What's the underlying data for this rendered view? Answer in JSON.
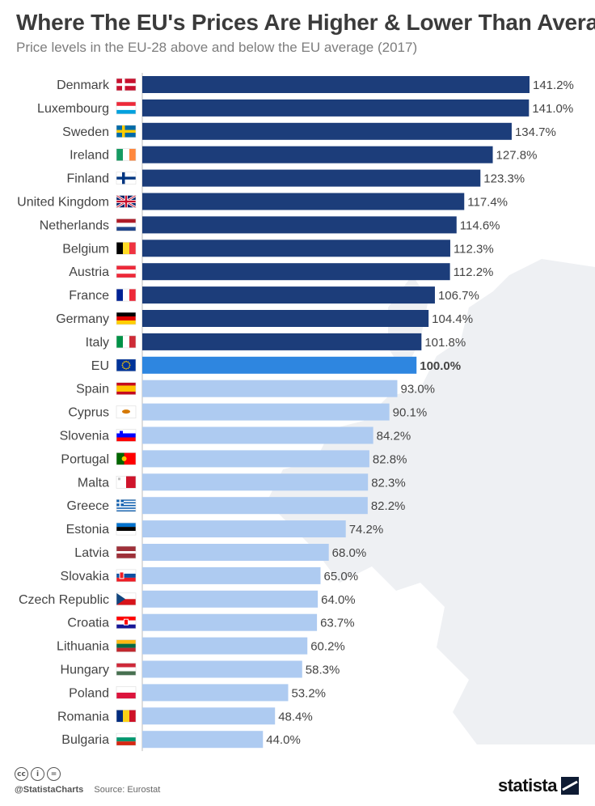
{
  "header": {
    "title": "Where The EU's Prices Are Higher & Lower Than Average",
    "subtitle": "Price levels in the EU-28 above and below the EU average (2017)"
  },
  "footer": {
    "license_icons": [
      "cc",
      "i",
      "="
    ],
    "handle": "@StatistaCharts",
    "source": "Source: Eurostat",
    "brand": "statista"
  },
  "colors": {
    "above": "#1c3d7a",
    "eu": "#2e86e0",
    "below": "#aecbf1",
    "label": "#444444",
    "map": "#eef0f3"
  },
  "chart_data": {
    "type": "bar",
    "orientation": "horizontal",
    "categories": [
      "Denmark",
      "Luxembourg",
      "Sweden",
      "Ireland",
      "Finland",
      "United Kingdom",
      "Netherlands",
      "Belgium",
      "Austria",
      "France",
      "Germany",
      "Italy",
      "EU",
      "Spain",
      "Cyprus",
      "Slovenia",
      "Portugal",
      "Malta",
      "Greece",
      "Estonia",
      "Latvia",
      "Slovakia",
      "Czech Republic",
      "Croatia",
      "Lithuania",
      "Hungary",
      "Poland",
      "Romania",
      "Bulgaria"
    ],
    "values": [
      141.2,
      141.0,
      134.7,
      127.8,
      123.3,
      117.4,
      114.6,
      112.3,
      112.2,
      106.7,
      104.4,
      101.8,
      100.0,
      93.0,
      90.1,
      84.2,
      82.8,
      82.3,
      82.2,
      74.2,
      68.0,
      65.0,
      64.0,
      63.7,
      60.2,
      58.3,
      53.2,
      48.4,
      44.0
    ],
    "value_labels": [
      "141.2%",
      "141.0%",
      "134.7%",
      "127.8%",
      "123.3%",
      "117.4%",
      "114.6%",
      "112.3%",
      "112.2%",
      "106.7%",
      "104.4%",
      "101.8%",
      "100.0%",
      "93.0%",
      "90.1%",
      "84.2%",
      "82.8%",
      "82.3%",
      "82.2%",
      "74.2%",
      "68.0%",
      "65.0%",
      "64.0%",
      "63.7%",
      "60.2%",
      "58.3%",
      "53.2%",
      "48.4%",
      "44.0%"
    ],
    "flags": [
      "dk",
      "lu",
      "se",
      "ie",
      "fi",
      "gb",
      "nl",
      "be",
      "at",
      "fr",
      "de",
      "it",
      "eu",
      "es",
      "cy",
      "si",
      "pt",
      "mt",
      "gr",
      "ee",
      "lv",
      "sk",
      "cz",
      "hr",
      "lt",
      "hu",
      "pl",
      "ro",
      "bg"
    ],
    "highlight": "EU",
    "xlim": [
      0,
      141.2
    ],
    "grid": false,
    "legend": "none"
  }
}
